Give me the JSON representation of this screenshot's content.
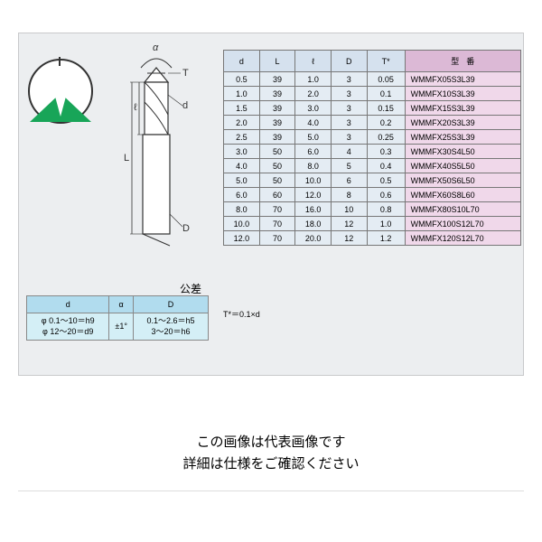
{
  "diagram": {
    "circle": {
      "diameter": 72,
      "border_color": "#333333",
      "fill": "#ffffff"
    },
    "notch_color": "#18a558",
    "alpha_label": "α",
    "labels": {
      "T": "T",
      "d": "d",
      "l": "ℓ",
      "L": "L",
      "D": "D"
    }
  },
  "tolerance": {
    "title": "公差",
    "headers": [
      "d",
      "α",
      "D"
    ],
    "rows": [
      {
        "d": "φ 0.1～10＝h9",
        "alpha": "±1°",
        "D": "0.1～2.6＝h5"
      },
      {
        "d": "φ 12～20＝d9",
        "alpha": "",
        "D": "3～20＝h6"
      }
    ],
    "header_bg": "#b1dcee",
    "cell_bg": "#d4eff6"
  },
  "main": {
    "numeric_headers": [
      "d",
      "L",
      "ℓ",
      "D",
      "T*"
    ],
    "model_header": "型番",
    "numeric_header_bg": "#d5e1ee",
    "model_header_bg": "#dcb9d6",
    "numeric_cell_bg": "#e4ecf3",
    "model_cell_bg": "#f0d8ea",
    "rows": [
      {
        "d": "0.5",
        "L": "39",
        "l": "1.0",
        "D": "3",
        "T": "0.05",
        "model": "WMMFX05S3L39"
      },
      {
        "d": "1.0",
        "L": "39",
        "l": "2.0",
        "D": "3",
        "T": "0.1",
        "model": "WMMFX10S3L39"
      },
      {
        "d": "1.5",
        "L": "39",
        "l": "3.0",
        "D": "3",
        "T": "0.15",
        "model": "WMMFX15S3L39"
      },
      {
        "d": "2.0",
        "L": "39",
        "l": "4.0",
        "D": "3",
        "T": "0.2",
        "model": "WMMFX20S3L39"
      },
      {
        "d": "2.5",
        "L": "39",
        "l": "5.0",
        "D": "3",
        "T": "0.25",
        "model": "WMMFX25S3L39"
      },
      {
        "d": "3.0",
        "L": "50",
        "l": "6.0",
        "D": "4",
        "T": "0.3",
        "model": "WMMFX30S4L50"
      },
      {
        "d": "4.0",
        "L": "50",
        "l": "8.0",
        "D": "5",
        "T": "0.4",
        "model": "WMMFX40S5L50"
      },
      {
        "d": "5.0",
        "L": "50",
        "l": "10.0",
        "D": "6",
        "T": "0.5",
        "model": "WMMFX50S6L50"
      },
      {
        "d": "6.0",
        "L": "60",
        "l": "12.0",
        "D": "8",
        "T": "0.6",
        "model": "WMMFX60S8L60"
      },
      {
        "d": "8.0",
        "L": "70",
        "l": "16.0",
        "D": "10",
        "T": "0.8",
        "model": "WMMFX80S10L70"
      },
      {
        "d": "10.0",
        "L": "70",
        "l": "18.0",
        "D": "12",
        "T": "1.0",
        "model": "WMMFX100S12L70"
      },
      {
        "d": "12.0",
        "L": "70",
        "l": "20.0",
        "D": "12",
        "T": "1.2",
        "model": "WMMFX120S12L70"
      }
    ],
    "col_widths": {
      "d": 34,
      "L": 34,
      "l": 34,
      "D": 34,
      "T": 36,
      "model": 110
    },
    "footnote": "T*＝0.1×d"
  },
  "disclaimer": {
    "line1": "この画像は代表画像です",
    "line2": "詳細は仕様をご確認ください"
  }
}
